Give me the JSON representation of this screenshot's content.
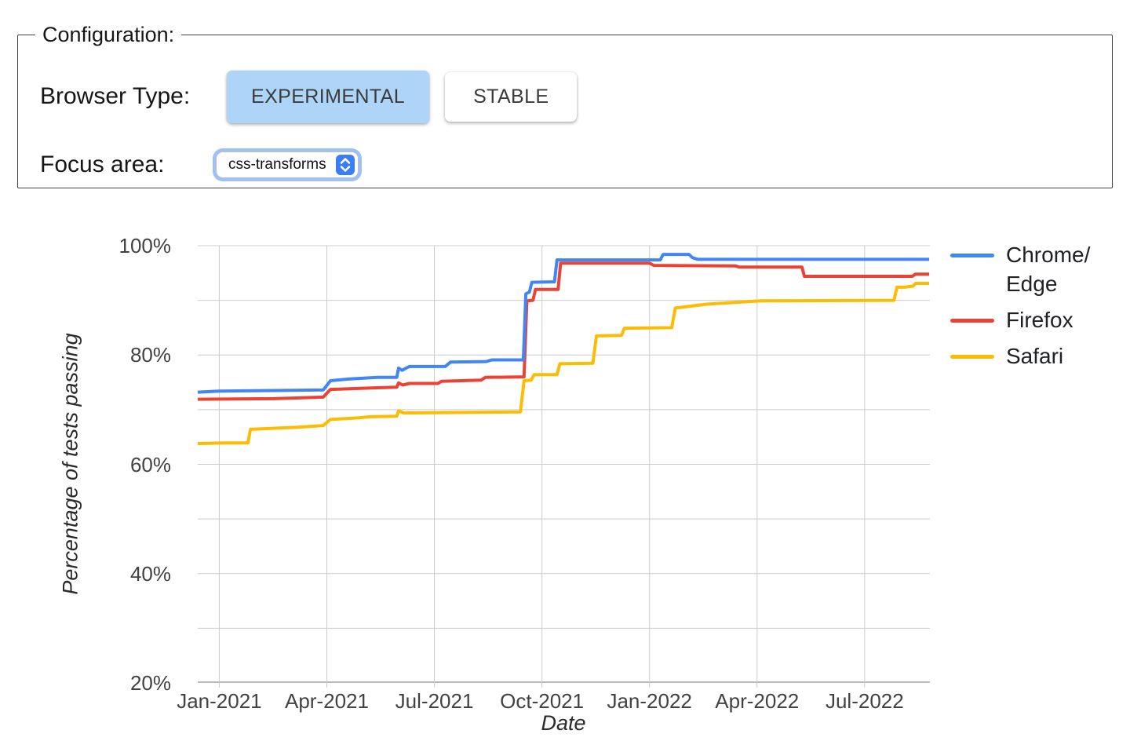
{
  "config": {
    "legend_label": "Configuration:",
    "browser_type_label": "Browser Type:",
    "buttons": [
      {
        "label": "EXPERIMENTAL",
        "active": true
      },
      {
        "label": "STABLE",
        "active": false
      }
    ],
    "active_button_color": "#aed5f8",
    "focus_area_label": "Focus area:",
    "focus_area_value": "css-transforms"
  },
  "chart_data": {
    "type": "line",
    "title": "",
    "xlabel": "Date",
    "ylabel": "Percentage of tests passing",
    "x_unit_note": "months since 2021-01-01",
    "xlim": [
      -0.6,
      19.82
    ],
    "ylim": [
      20,
      100
    ],
    "grid": true,
    "legend_position": "right",
    "grid_color": "#cccccc",
    "axis_line_color": "#b9b9b9",
    "x_ticks": [
      {
        "pos": 0,
        "label": "Jan-2021"
      },
      {
        "pos": 3,
        "label": "Apr-2021"
      },
      {
        "pos": 6,
        "label": "Jul-2021"
      },
      {
        "pos": 9,
        "label": "Oct-2021"
      },
      {
        "pos": 12,
        "label": "Jan-2022"
      },
      {
        "pos": 15,
        "label": "Apr-2022"
      },
      {
        "pos": 18,
        "label": "Jul-2022"
      }
    ],
    "y_ticks": [
      {
        "pos": 20,
        "label": "20%"
      },
      {
        "pos": 40,
        "label": "40%"
      },
      {
        "pos": 60,
        "label": "60%"
      },
      {
        "pos": 80,
        "label": "80%"
      },
      {
        "pos": 100,
        "label": "100%"
      }
    ],
    "y_minor_grid": [
      30,
      50,
      70,
      90
    ],
    "series": [
      {
        "name": "Chrome/Edge",
        "legend_lines": [
          "Chrome/",
          "Edge"
        ],
        "color": "#4285F4",
        "points": [
          [
            -0.6,
            73.2
          ],
          [
            0,
            73.4
          ],
          [
            1.5,
            73.5
          ],
          [
            2.9,
            73.6
          ],
          [
            3.1,
            75.3
          ],
          [
            3.6,
            75.6
          ],
          [
            4.4,
            75.9
          ],
          [
            4.95,
            75.9
          ],
          [
            5.0,
            77.6
          ],
          [
            5.1,
            77.2
          ],
          [
            5.3,
            77.9
          ],
          [
            6.3,
            77.9
          ],
          [
            6.45,
            78.7
          ],
          [
            7.45,
            78.8
          ],
          [
            7.6,
            79.1
          ],
          [
            8.48,
            79.1
          ],
          [
            8.55,
            91.2
          ],
          [
            8.65,
            91.5
          ],
          [
            8.72,
            93.3
          ],
          [
            9.35,
            93.4
          ],
          [
            9.42,
            97.4
          ],
          [
            12.3,
            97.4
          ],
          [
            12.38,
            98.4
          ],
          [
            13.1,
            98.4
          ],
          [
            13.2,
            97.8
          ],
          [
            13.35,
            97.5
          ],
          [
            19.8,
            97.5
          ]
        ]
      },
      {
        "name": "Firefox",
        "legend_lines": [
          "Firefox"
        ],
        "color": "#EA4335",
        "points": [
          [
            -0.6,
            71.9
          ],
          [
            1.5,
            72.0
          ],
          [
            2.9,
            72.3
          ],
          [
            3.1,
            73.7
          ],
          [
            4.4,
            74.0
          ],
          [
            4.95,
            74.1
          ],
          [
            5.0,
            74.9
          ],
          [
            5.12,
            74.5
          ],
          [
            5.3,
            74.8
          ],
          [
            6.1,
            74.8
          ],
          [
            6.2,
            75.2
          ],
          [
            7.3,
            75.4
          ],
          [
            7.42,
            75.9
          ],
          [
            8.5,
            76.0
          ],
          [
            8.58,
            89.9
          ],
          [
            8.75,
            90.0
          ],
          [
            8.82,
            92.0
          ],
          [
            9.45,
            92.0
          ],
          [
            9.52,
            96.8
          ],
          [
            12.0,
            96.8
          ],
          [
            12.12,
            96.4
          ],
          [
            14.4,
            96.3
          ],
          [
            14.5,
            96.1
          ],
          [
            16.25,
            96.1
          ],
          [
            16.32,
            94.4
          ],
          [
            19.33,
            94.4
          ],
          [
            19.42,
            94.8
          ],
          [
            19.8,
            94.8
          ]
        ]
      },
      {
        "name": "Safari",
        "legend_lines": [
          "Safari"
        ],
        "color": "#FBBC04",
        "points": [
          [
            -0.6,
            63.8
          ],
          [
            0.2,
            63.9
          ],
          [
            0.8,
            63.9
          ],
          [
            0.87,
            66.4
          ],
          [
            2.2,
            66.8
          ],
          [
            2.9,
            67.1
          ],
          [
            3.1,
            68.2
          ],
          [
            3.9,
            68.5
          ],
          [
            4.2,
            68.7
          ],
          [
            4.95,
            68.8
          ],
          [
            5.0,
            69.8
          ],
          [
            5.15,
            69.4
          ],
          [
            8.4,
            69.6
          ],
          [
            8.5,
            75.3
          ],
          [
            8.7,
            75.4
          ],
          [
            8.78,
            76.4
          ],
          [
            9.42,
            76.4
          ],
          [
            9.5,
            78.4
          ],
          [
            10.42,
            78.5
          ],
          [
            10.52,
            83.5
          ],
          [
            11.22,
            83.6
          ],
          [
            11.3,
            84.9
          ],
          [
            12.62,
            85.0
          ],
          [
            12.72,
            88.6
          ],
          [
            13.6,
            89.3
          ],
          [
            15.1,
            89.9
          ],
          [
            18.82,
            90.0
          ],
          [
            18.9,
            92.4
          ],
          [
            19.1,
            92.4
          ],
          [
            19.35,
            92.6
          ],
          [
            19.42,
            93.1
          ],
          [
            19.8,
            93.1
          ]
        ]
      }
    ]
  }
}
